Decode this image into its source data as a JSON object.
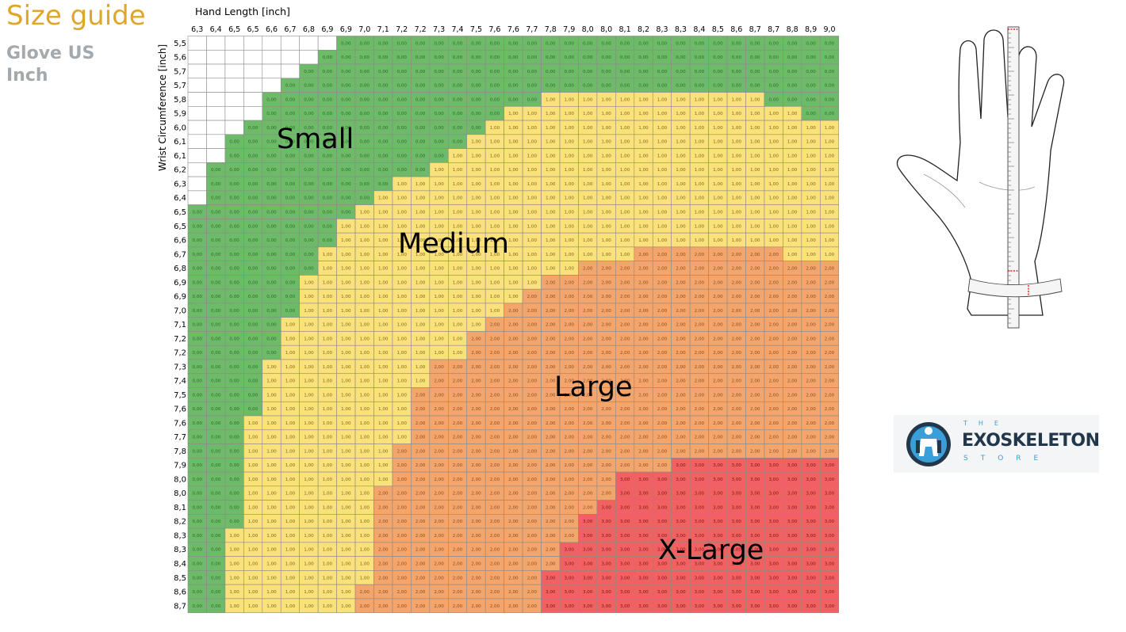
{
  "header": {
    "title": "Size guide",
    "subtitle_line1": "Glove US",
    "subtitle_line2": "Inch"
  },
  "brand": {
    "the": "THE",
    "name": "EXOSKELETON",
    "store": "STORE"
  },
  "colors": {
    "none": "#ffffff",
    "small": "#6dbb68",
    "medium": "#fbe17a",
    "large": "#f3a56b",
    "xlarge": "#f16162",
    "grid": "#8a8a8a",
    "title": "#e0a62a",
    "subtitle": "#a3a9ad"
  },
  "chart_data": {
    "type": "heatmap",
    "xlabel": "Hand Length [inch]",
    "ylabel": "Wrist Circumference [inch]",
    "x": [
      "6,3",
      "6,4",
      "6,5",
      "6,5",
      "6,6",
      "6,7",
      "6,8",
      "6,9",
      "6,9",
      "7,0",
      "7,1",
      "7,2",
      "7,2",
      "7,3",
      "7,4",
      "7,5",
      "7,6",
      "7,6",
      "7,7",
      "7,8",
      "7,9",
      "8,0",
      "8,0",
      "8,1",
      "8,2",
      "8,3",
      "8,3",
      "8,4",
      "8,5",
      "8,6",
      "8,7",
      "8,7",
      "8,8",
      "8,9",
      "9,0"
    ],
    "y": [
      "5,5",
      "5,6",
      "5,7",
      "5,7",
      "5,8",
      "5,9",
      "6,0",
      "6,1",
      "6,1",
      "6,2",
      "6,3",
      "6,4",
      "6,5",
      "6,5",
      "6,6",
      "6,7",
      "6,8",
      "6,9",
      "6,9",
      "7,0",
      "7,1",
      "7,2",
      "7,2",
      "7,3",
      "7,4",
      "7,5",
      "7,6",
      "7,6",
      "7,7",
      "7,8",
      "7,9",
      "8,0",
      "8,0",
      "8,1",
      "8,2",
      "8,3",
      "8,3",
      "8,4",
      "8,5",
      "8,6",
      "8,7"
    ],
    "value_format": "0,00",
    "value_meaning": {
      "0": "Small",
      "1": "Medium",
      "2": "Large",
      "3": "X-Large"
    },
    "region_labels": [
      "Small",
      "Medium",
      "Large",
      "X-Large"
    ],
    "rows": [
      {
        "blank": 8,
        "runs": [
          [
            0,
            27
          ]
        ]
      },
      {
        "blank": 7,
        "runs": [
          [
            0,
            28
          ]
        ]
      },
      {
        "blank": 6,
        "runs": [
          [
            0,
            29
          ]
        ]
      },
      {
        "blank": 5,
        "runs": [
          [
            0,
            30
          ]
        ]
      },
      {
        "blank": 4,
        "runs": [
          [
            0,
            15
          ],
          [
            1,
            12
          ],
          [
            0,
            4
          ]
        ]
      },
      {
        "blank": 4,
        "runs": [
          [
            0,
            13
          ],
          [
            1,
            16
          ],
          [
            0,
            2
          ]
        ]
      },
      {
        "blank": 3,
        "runs": [
          [
            0,
            13
          ],
          [
            1,
            19
          ]
        ]
      },
      {
        "blank": 2,
        "runs": [
          [
            0,
            13
          ],
          [
            1,
            20
          ]
        ]
      },
      {
        "blank": 2,
        "runs": [
          [
            0,
            12
          ],
          [
            1,
            21
          ]
        ]
      },
      {
        "blank": 1,
        "runs": [
          [
            0,
            12
          ],
          [
            1,
            22
          ]
        ]
      },
      {
        "blank": 1,
        "runs": [
          [
            0,
            10
          ],
          [
            1,
            24
          ]
        ]
      },
      {
        "blank": 1,
        "runs": [
          [
            0,
            9
          ],
          [
            1,
            25
          ]
        ]
      },
      {
        "blank": 0,
        "runs": [
          [
            0,
            9
          ],
          [
            1,
            26
          ]
        ]
      },
      {
        "blank": 0,
        "runs": [
          [
            0,
            8
          ],
          [
            1,
            27
          ]
        ]
      },
      {
        "blank": 0,
        "runs": [
          [
            0,
            8
          ],
          [
            1,
            27
          ]
        ]
      },
      {
        "blank": 0,
        "runs": [
          [
            0,
            7
          ],
          [
            1,
            17
          ],
          [
            2,
            8
          ],
          [
            1,
            3
          ]
        ]
      },
      {
        "blank": 0,
        "runs": [
          [
            0,
            7
          ],
          [
            1,
            14
          ],
          [
            2,
            14
          ]
        ]
      },
      {
        "blank": 0,
        "runs": [
          [
            0,
            6
          ],
          [
            1,
            13
          ],
          [
            2,
            16
          ]
        ]
      },
      {
        "blank": 0,
        "runs": [
          [
            0,
            6
          ],
          [
            1,
            12
          ],
          [
            2,
            17
          ]
        ]
      },
      {
        "blank": 0,
        "runs": [
          [
            0,
            6
          ],
          [
            1,
            11
          ],
          [
            2,
            18
          ]
        ]
      },
      {
        "blank": 0,
        "runs": [
          [
            0,
            5
          ],
          [
            1,
            11
          ],
          [
            2,
            19
          ]
        ]
      },
      {
        "blank": 0,
        "runs": [
          [
            0,
            5
          ],
          [
            1,
            10
          ],
          [
            2,
            20
          ]
        ]
      },
      {
        "blank": 0,
        "runs": [
          [
            0,
            5
          ],
          [
            1,
            10
          ],
          [
            2,
            20
          ]
        ]
      },
      {
        "blank": 0,
        "runs": [
          [
            0,
            4
          ],
          [
            1,
            9
          ],
          [
            2,
            22
          ]
        ]
      },
      {
        "blank": 0,
        "runs": [
          [
            0,
            4
          ],
          [
            1,
            9
          ],
          [
            2,
            22
          ]
        ]
      },
      {
        "blank": 0,
        "runs": [
          [
            0,
            4
          ],
          [
            1,
            8
          ],
          [
            2,
            23
          ]
        ]
      },
      {
        "blank": 0,
        "runs": [
          [
            0,
            4
          ],
          [
            1,
            8
          ],
          [
            2,
            23
          ]
        ]
      },
      {
        "blank": 0,
        "runs": [
          [
            0,
            3
          ],
          [
            1,
            9
          ],
          [
            2,
            23
          ]
        ]
      },
      {
        "blank": 0,
        "runs": [
          [
            0,
            3
          ],
          [
            1,
            9
          ],
          [
            2,
            23
          ]
        ]
      },
      {
        "blank": 0,
        "runs": [
          [
            0,
            3
          ],
          [
            1,
            8
          ],
          [
            2,
            24
          ]
        ]
      },
      {
        "blank": 0,
        "runs": [
          [
            0,
            3
          ],
          [
            1,
            8
          ],
          [
            2,
            15
          ],
          [
            3,
            9
          ]
        ]
      },
      {
        "blank": 0,
        "runs": [
          [
            0,
            3
          ],
          [
            1,
            8
          ],
          [
            2,
            12
          ],
          [
            3,
            12
          ]
        ]
      },
      {
        "blank": 0,
        "runs": [
          [
            0,
            3
          ],
          [
            1,
            7
          ],
          [
            2,
            13
          ],
          [
            3,
            12
          ]
        ]
      },
      {
        "blank": 0,
        "runs": [
          [
            0,
            3
          ],
          [
            1,
            7
          ],
          [
            2,
            12
          ],
          [
            3,
            13
          ]
        ]
      },
      {
        "blank": 0,
        "runs": [
          [
            0,
            3
          ],
          [
            1,
            7
          ],
          [
            2,
            11
          ],
          [
            3,
            14
          ]
        ]
      },
      {
        "blank": 0,
        "runs": [
          [
            0,
            2
          ],
          [
            1,
            8
          ],
          [
            2,
            11
          ],
          [
            3,
            14
          ]
        ]
      },
      {
        "blank": 0,
        "runs": [
          [
            0,
            2
          ],
          [
            1,
            8
          ],
          [
            2,
            10
          ],
          [
            3,
            15
          ]
        ]
      },
      {
        "blank": 0,
        "runs": [
          [
            0,
            2
          ],
          [
            1,
            8
          ],
          [
            2,
            10
          ],
          [
            3,
            15
          ]
        ]
      },
      {
        "blank": 0,
        "runs": [
          [
            0,
            2
          ],
          [
            1,
            8
          ],
          [
            2,
            9
          ],
          [
            3,
            16
          ]
        ]
      },
      {
        "blank": 0,
        "runs": [
          [
            0,
            2
          ],
          [
            1,
            7
          ],
          [
            2,
            10
          ],
          [
            3,
            16
          ]
        ]
      },
      {
        "blank": 0,
        "runs": [
          [
            0,
            2
          ],
          [
            1,
            7
          ],
          [
            2,
            10
          ],
          [
            3,
            16
          ]
        ]
      }
    ]
  }
}
